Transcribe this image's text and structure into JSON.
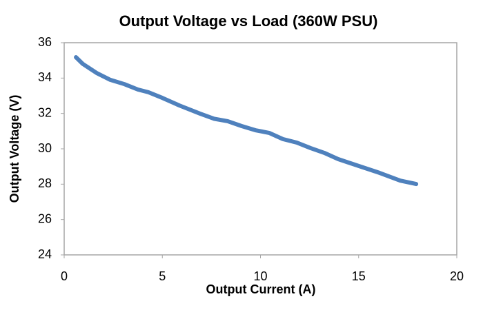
{
  "chart_data": {
    "type": "line",
    "title": "Output Voltage vs Load (360W PSU)",
    "x_label": "Output Current (A)",
    "y_label": "Output Voltage (V)",
    "x": [
      0.6,
      0.95,
      1.65,
      2.35,
      3.06,
      3.76,
      4.29,
      5.0,
      5.87,
      6.92,
      7.63,
      8.33,
      9.03,
      9.74,
      10.44,
      11.14,
      11.85,
      12.55,
      13.25,
      13.95,
      15.0,
      16.06,
      17.12,
      17.93
    ],
    "series": [
      {
        "name": "Output Voltage",
        "color": "#4f81bd",
        "values": [
          35.18,
          34.8,
          34.29,
          33.9,
          33.66,
          33.35,
          33.2,
          32.88,
          32.45,
          31.99,
          31.7,
          31.56,
          31.29,
          31.05,
          30.9,
          30.55,
          30.35,
          30.04,
          29.77,
          29.42,
          29.03,
          28.64,
          28.2,
          28.01
        ]
      }
    ],
    "xlim": [
      0,
      20
    ],
    "xticks": [
      0,
      5,
      10,
      15,
      20
    ],
    "ylim": [
      24,
      36
    ],
    "yticks": [
      24,
      26,
      28,
      30,
      32,
      34,
      36
    ],
    "grid": false
  }
}
